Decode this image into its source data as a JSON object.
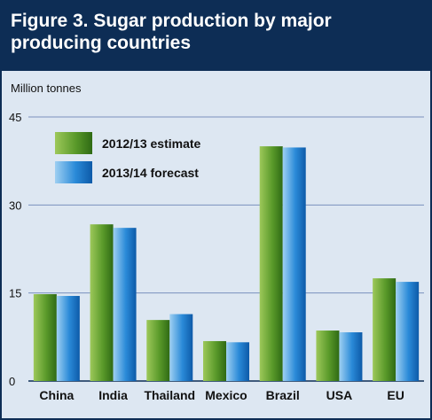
{
  "header": {
    "title": "Figure 3. Sugar production by major producing countries"
  },
  "chart_data": {
    "type": "bar",
    "title": "Figure 3. Sugar production by major producing countries",
    "ylabel": "Million tonnes",
    "ylim": [
      0,
      45
    ],
    "yticks": [
      "0",
      "15",
      "30",
      "45"
    ],
    "grid": true,
    "legend_position": "top-left",
    "categories": [
      "China",
      "India",
      "Thailand",
      "Mexico",
      "Brazil",
      "USA",
      "EU"
    ],
    "series": [
      {
        "name": "2012/13 estimate",
        "color": "#4f8a1e",
        "values": [
          14.8,
          26.7,
          10.4,
          6.8,
          40.0,
          8.6,
          17.5
        ]
      },
      {
        "name": "2013/14 forecast",
        "color": "#1f78c8",
        "values": [
          14.5,
          26.1,
          11.4,
          6.6,
          39.8,
          8.3,
          16.9
        ]
      }
    ]
  }
}
